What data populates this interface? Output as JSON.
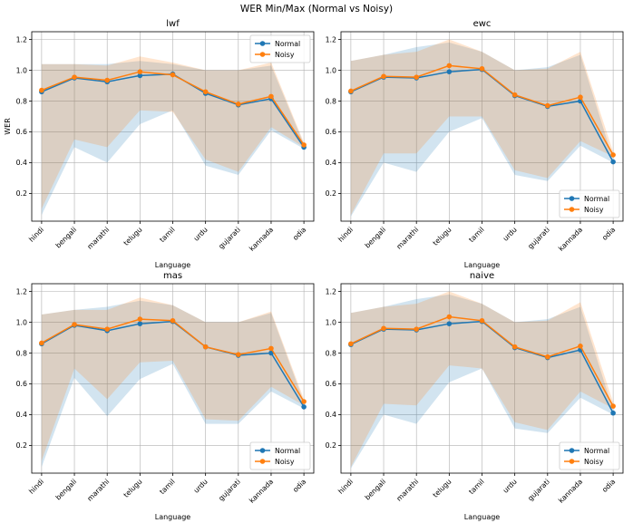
{
  "figure": {
    "suptitle": "WER Min/Max (Normal vs Noisy)"
  },
  "colors": {
    "normal": "#1f77b4",
    "noisy": "#ff7f0e"
  },
  "chart_data": [
    {
      "type": "line",
      "title": "lwf",
      "xlabel": "Language",
      "ylabel": "WER",
      "ylim": [
        0.02,
        1.25
      ],
      "yticks": [
        0.2,
        0.4,
        0.6,
        0.8,
        1.0,
        1.2
      ],
      "legend_position": "top-right",
      "categories": [
        "hindi",
        "bengali",
        "marathi",
        "telugu",
        "tamil",
        "urdu",
        "gujarati",
        "kannada",
        "odia"
      ],
      "series": [
        {
          "name": "Normal",
          "values": [
            0.86,
            0.95,
            0.925,
            0.965,
            0.975,
            0.85,
            0.775,
            0.815,
            0.5
          ],
          "min": [
            0.06,
            0.5,
            0.4,
            0.65,
            0.74,
            0.38,
            0.32,
            0.61,
            0.49
          ],
          "max": [
            1.04,
            1.04,
            1.04,
            1.06,
            1.04,
            1.0,
            1.0,
            1.03,
            0.52
          ]
        },
        {
          "name": "Noisy",
          "values": [
            0.87,
            0.955,
            0.935,
            0.99,
            0.97,
            0.86,
            0.78,
            0.83,
            0.515
          ],
          "min": [
            0.1,
            0.55,
            0.5,
            0.74,
            0.73,
            0.42,
            0.34,
            0.63,
            0.5
          ],
          "max": [
            1.04,
            1.04,
            1.03,
            1.09,
            1.05,
            1.0,
            1.0,
            1.05,
            0.53
          ]
        }
      ]
    },
    {
      "type": "line",
      "title": "ewc",
      "xlabel": "Language",
      "ylabel": "",
      "ylim": [
        0.02,
        1.25
      ],
      "yticks": [
        0.2,
        0.4,
        0.6,
        0.8,
        1.0,
        1.2
      ],
      "legend_position": "bottom-right",
      "categories": [
        "hindi",
        "bengali",
        "marathi",
        "telugu",
        "tamil",
        "urdu",
        "gujarati",
        "kannada",
        "odia"
      ],
      "series": [
        {
          "name": "Normal",
          "values": [
            0.86,
            0.955,
            0.95,
            0.99,
            1.005,
            0.835,
            0.765,
            0.8,
            0.405
          ],
          "min": [
            0.05,
            0.4,
            0.34,
            0.6,
            0.69,
            0.32,
            0.28,
            0.51,
            0.4
          ],
          "max": [
            1.06,
            1.1,
            1.15,
            1.18,
            1.12,
            1.0,
            1.02,
            1.1,
            0.42
          ]
        },
        {
          "name": "Noisy",
          "values": [
            0.865,
            0.96,
            0.955,
            1.03,
            1.01,
            0.84,
            0.77,
            0.825,
            0.45
          ],
          "min": [
            0.06,
            0.46,
            0.46,
            0.7,
            0.7,
            0.35,
            0.3,
            0.54,
            0.44
          ],
          "max": [
            1.06,
            1.1,
            1.12,
            1.2,
            1.12,
            1.0,
            1.01,
            1.12,
            0.47
          ]
        }
      ]
    },
    {
      "type": "line",
      "title": "mas",
      "xlabel": "Language",
      "ylabel": "",
      "ylim": [
        0.02,
        1.25
      ],
      "yticks": [
        0.2,
        0.4,
        0.6,
        0.8,
        1.0,
        1.2
      ],
      "legend_position": "bottom-right",
      "categories": [
        "hindi",
        "bengali",
        "marathi",
        "telugu",
        "tamil",
        "urdu",
        "gujarati",
        "kannada",
        "odia"
      ],
      "series": [
        {
          "name": "Normal",
          "values": [
            0.86,
            0.98,
            0.945,
            0.99,
            1.005,
            0.84,
            0.785,
            0.8,
            0.45
          ],
          "min": [
            0.06,
            0.64,
            0.39,
            0.63,
            0.73,
            0.34,
            0.34,
            0.55,
            0.44
          ],
          "max": [
            1.05,
            1.08,
            1.1,
            1.14,
            1.11,
            1.0,
            1.0,
            1.06,
            0.48
          ]
        },
        {
          "name": "Noisy",
          "values": [
            0.865,
            0.985,
            0.955,
            1.02,
            1.01,
            0.84,
            0.79,
            0.83,
            0.485
          ],
          "min": [
            0.1,
            0.7,
            0.5,
            0.74,
            0.75,
            0.37,
            0.36,
            0.58,
            0.46
          ],
          "max": [
            1.05,
            1.08,
            1.08,
            1.16,
            1.11,
            1.0,
            1.0,
            1.07,
            0.5
          ]
        }
      ]
    },
    {
      "type": "line",
      "title": "naive",
      "xlabel": "Language",
      "ylabel": "",
      "ylim": [
        0.02,
        1.25
      ],
      "yticks": [
        0.2,
        0.4,
        0.6,
        0.8,
        1.0,
        1.2
      ],
      "legend_position": "bottom-right",
      "categories": [
        "hindi",
        "bengali",
        "marathi",
        "telugu",
        "tamil",
        "urdu",
        "gujarati",
        "kannada",
        "odia"
      ],
      "series": [
        {
          "name": "Normal",
          "values": [
            0.855,
            0.955,
            0.95,
            0.99,
            1.005,
            0.835,
            0.77,
            0.82,
            0.41
          ],
          "min": [
            0.05,
            0.4,
            0.34,
            0.61,
            0.7,
            0.31,
            0.28,
            0.51,
            0.4
          ],
          "max": [
            1.06,
            1.1,
            1.15,
            1.18,
            1.12,
            1.0,
            1.02,
            1.1,
            0.43
          ]
        },
        {
          "name": "Noisy",
          "values": [
            0.86,
            0.96,
            0.955,
            1.035,
            1.01,
            0.84,
            0.775,
            0.845,
            0.455
          ],
          "min": [
            0.06,
            0.47,
            0.46,
            0.72,
            0.7,
            0.35,
            0.3,
            0.55,
            0.44
          ],
          "max": [
            1.06,
            1.1,
            1.12,
            1.2,
            1.12,
            1.0,
            1.01,
            1.13,
            0.48
          ]
        }
      ]
    }
  ]
}
